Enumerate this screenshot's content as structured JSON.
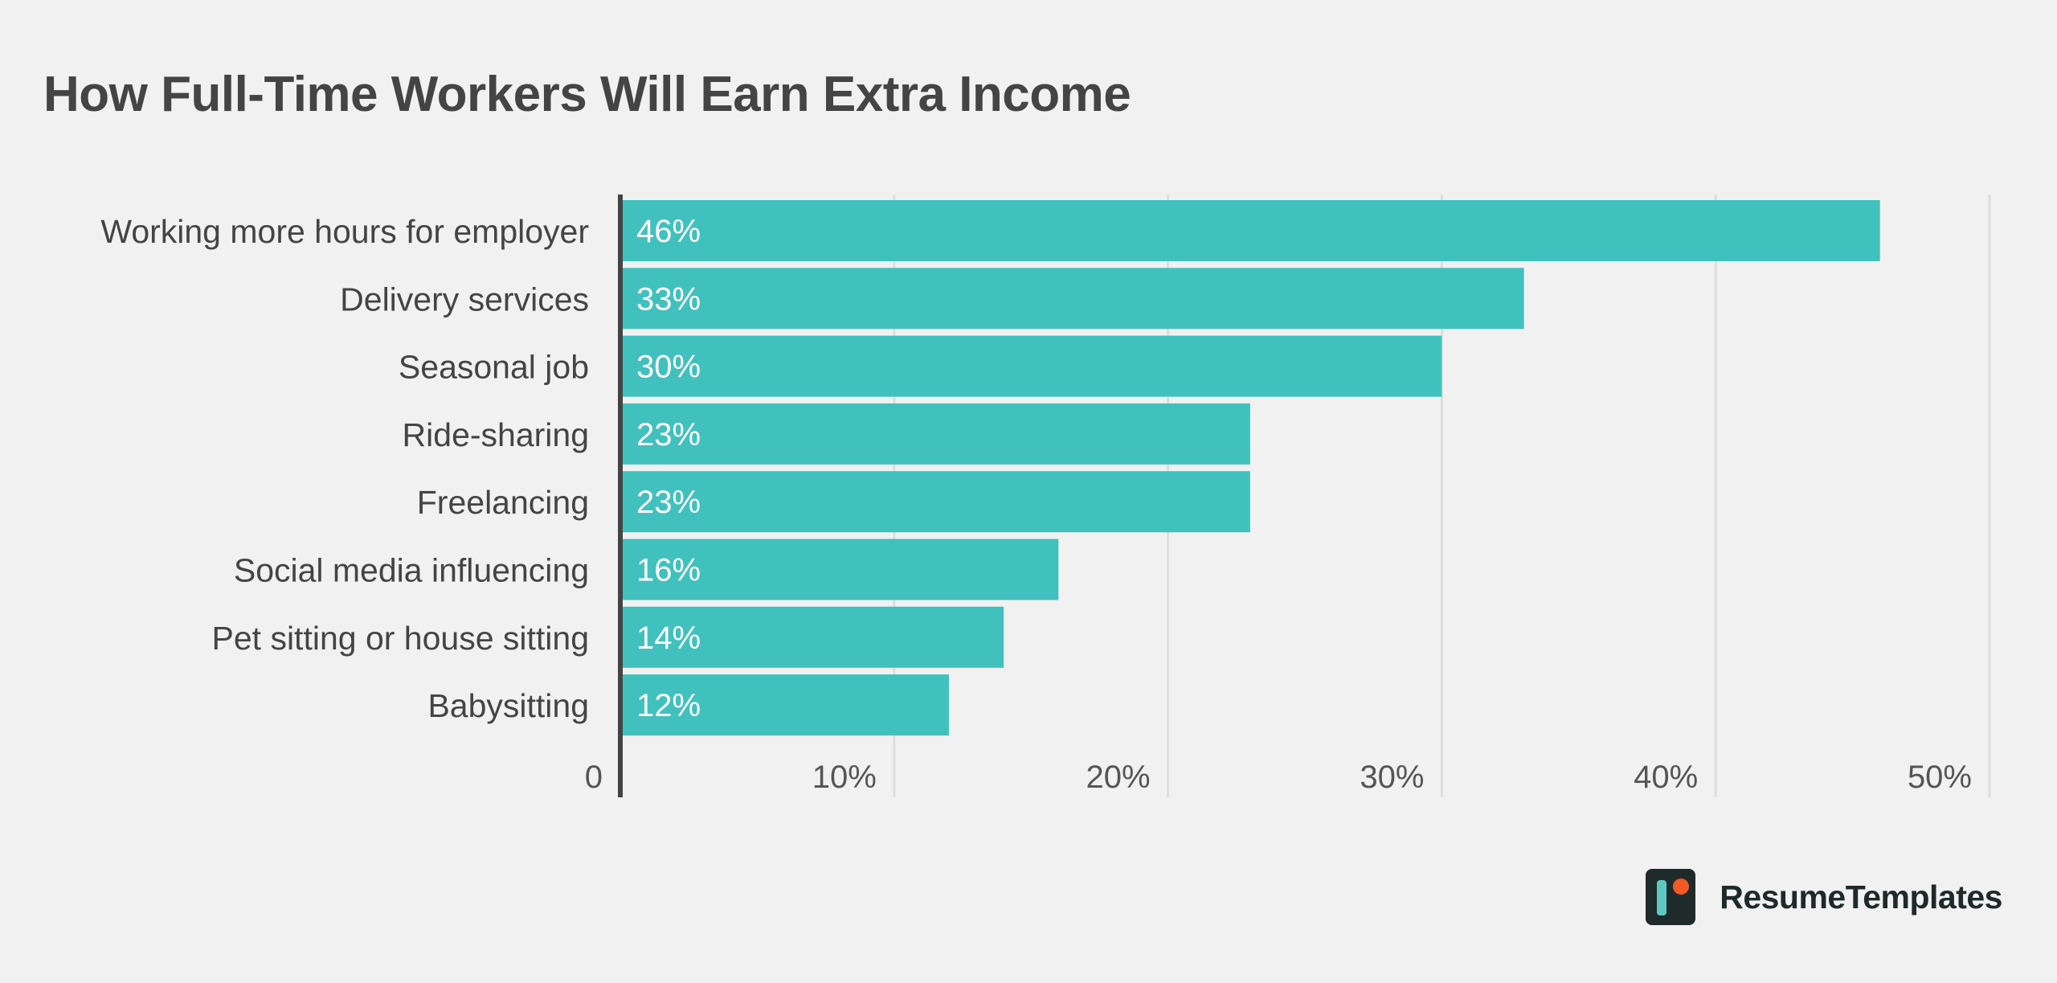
{
  "chart_data": {
    "type": "bar",
    "orientation": "horizontal",
    "title": "How Full-Time Workers Will Earn Extra Income",
    "categories": [
      "Working more hours for employer",
      "Delivery services",
      "Seasonal job",
      "Ride-sharing",
      "Freelancing",
      "Social media influencing",
      "Pet sitting or house sitting",
      "Babysitting"
    ],
    "values": [
      46,
      33,
      30,
      23,
      23,
      16,
      14,
      12
    ],
    "data_labels": [
      "46%",
      "33%",
      "30%",
      "23%",
      "23%",
      "16%",
      "14%",
      "12%"
    ],
    "xlim": [
      0,
      50
    ],
    "x_ticks": [
      0,
      10,
      20,
      30,
      40,
      50
    ],
    "x_tick_labels": [
      "0",
      "10%",
      "20%",
      "30%",
      "40%",
      "50%"
    ],
    "xlabel": "",
    "ylabel": "",
    "grid": "vertical",
    "legend": "none",
    "bar_color": "#41c1bd",
    "grid_color": "#dedede",
    "axis_color": "#444444"
  },
  "brand": {
    "name": "ResumeTemplates",
    "logo_icon": "resume-templates-logo-icon",
    "logo_dark": "#1f2b2a",
    "logo_teal": "#5ec9c2",
    "logo_orange": "#f15a24"
  }
}
